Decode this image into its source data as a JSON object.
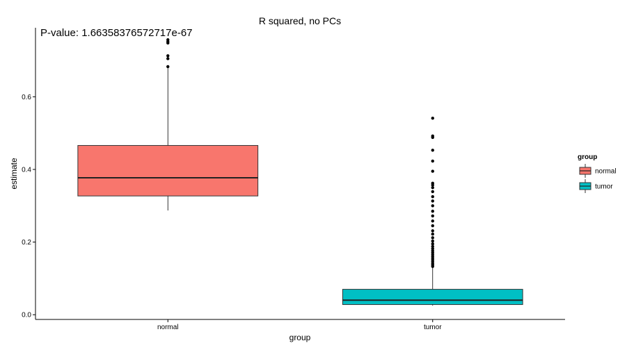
{
  "chart_data": {
    "type": "box",
    "title": "R squared, no PCs",
    "annotation": "P-value: 1.66358376572717e-67",
    "xlabel": "group",
    "ylabel": "estimate",
    "ylim": [
      -0.013,
      0.79
    ],
    "yticks": [
      0.0,
      0.2,
      0.4,
      0.6
    ],
    "ytick_labels": [
      "0.0",
      "0.2",
      "0.4",
      "0.6"
    ],
    "grid": false,
    "legend": {
      "title": "group",
      "position": "right"
    },
    "categories": [
      "normal",
      "tumor"
    ],
    "boxes": [
      {
        "name": "normal",
        "color": "#F8766D",
        "whisker_low": 0.287,
        "q1": 0.327,
        "median": 0.377,
        "q3": 0.466,
        "whisker_high": 0.681,
        "outliers": [
          0.683,
          0.705,
          0.713,
          0.748,
          0.752,
          0.757
        ]
      },
      {
        "name": "tumor",
        "color": "#00BFC4",
        "whisker_low": 0.025,
        "q1": 0.028,
        "median": 0.04,
        "q3": 0.07,
        "whisker_high": 0.131,
        "outliers": [
          0.133,
          0.137,
          0.141,
          0.146,
          0.151,
          0.156,
          0.161,
          0.166,
          0.171,
          0.176,
          0.182,
          0.188,
          0.195,
          0.203,
          0.212,
          0.222,
          0.231,
          0.245,
          0.258,
          0.272,
          0.285,
          0.3,
          0.313,
          0.325,
          0.339,
          0.35,
          0.357,
          0.362,
          0.395,
          0.423,
          0.453,
          0.488,
          0.492,
          0.541
        ]
      }
    ]
  }
}
